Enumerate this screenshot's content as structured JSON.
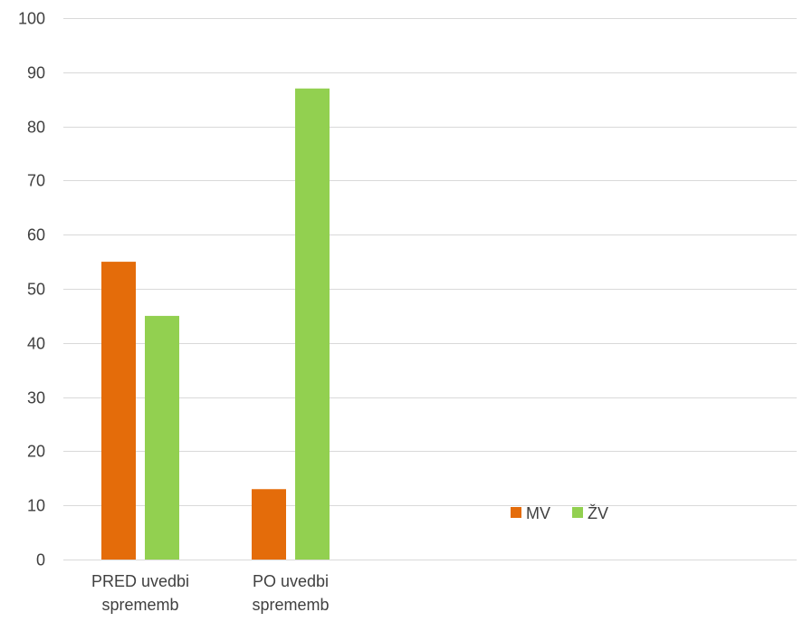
{
  "chart_data": {
    "type": "bar",
    "categories": [
      [
        "PRED uvedbi",
        "sprememb"
      ],
      [
        "PO uvedbi",
        "sprememb"
      ]
    ],
    "series": [
      {
        "name": "MV",
        "color": "#E46C0A",
        "values": [
          55,
          13
        ]
      },
      {
        "name": "ŽV",
        "color": "#92D050",
        "values": [
          45,
          87
        ]
      }
    ],
    "ylim": [
      0,
      100
    ],
    "yticks": [
      0,
      10,
      20,
      30,
      40,
      50,
      60,
      70,
      80,
      90,
      100
    ],
    "grid": true,
    "legend": "right",
    "title": "",
    "xlabel": "",
    "ylabel": ""
  }
}
